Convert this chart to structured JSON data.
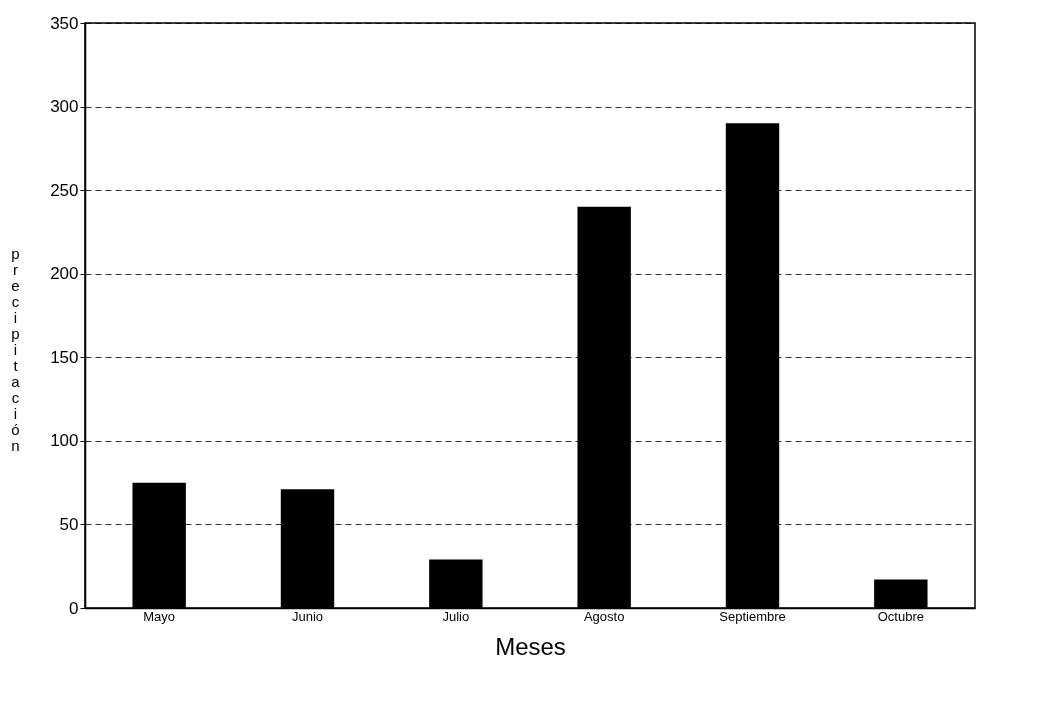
{
  "chart_data": {
    "type": "bar",
    "xlabel": "Meses",
    "ylabel": "precipitación",
    "categories": [
      "Mayo",
      "Junio",
      "Julio",
      "Agosto",
      "Septiembre",
      "Octubre"
    ],
    "values": [
      75,
      71,
      29,
      240,
      290,
      17
    ],
    "color": "#000000",
    "ylim": [
      0,
      350
    ],
    "yticks": [
      0,
      50,
      100,
      150,
      200,
      250,
      300,
      350
    ],
    "grid": "y",
    "line_style": "dashed"
  }
}
